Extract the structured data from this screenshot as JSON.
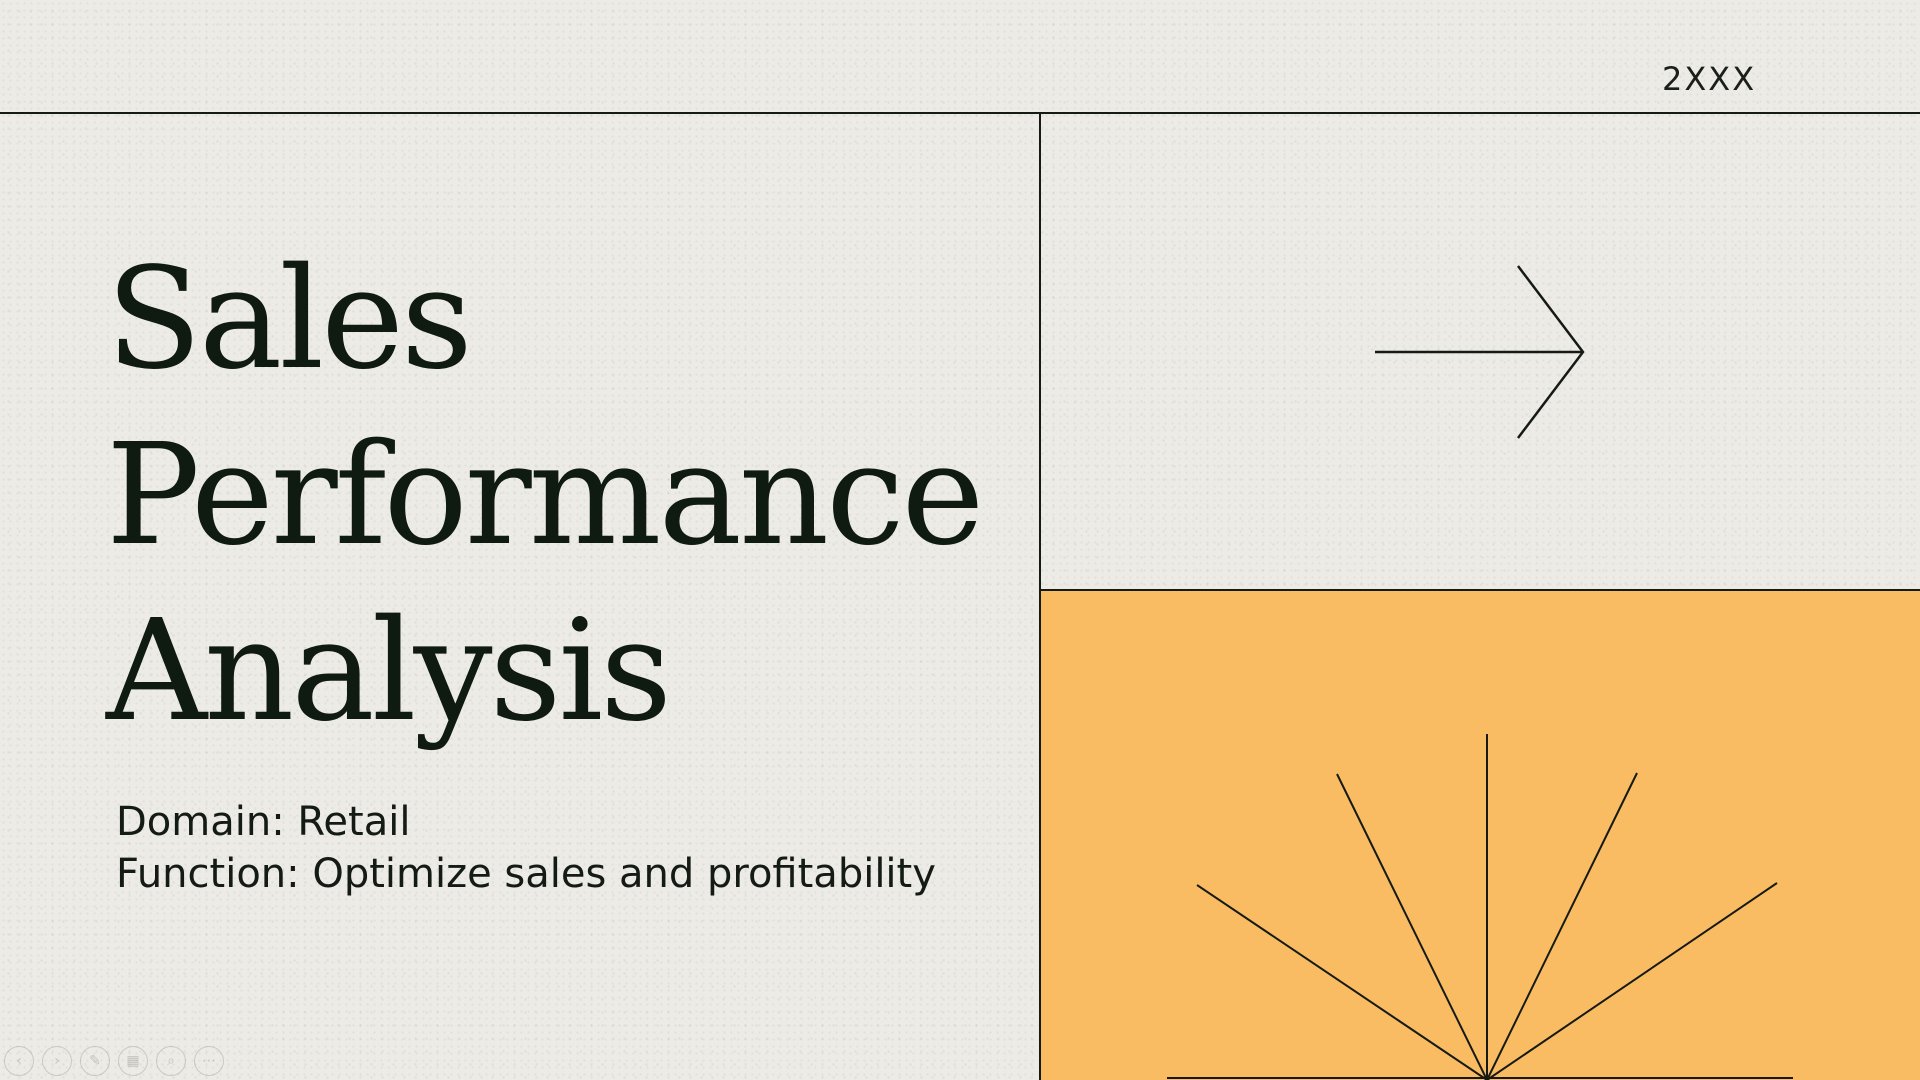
{
  "slide": {
    "year": "2XXX",
    "title_lines": [
      "Sales",
      "Performance",
      "Analysis"
    ],
    "subtitle_lines": [
      "Domain: Retail",
      "Function: Optimize sales and profitability"
    ]
  },
  "decor": {
    "accent_color": "#f9bc63",
    "background_color": "#ecebe5",
    "line_color": "#151a15",
    "arrow_icon": "right-arrow-icon",
    "burst_icon": "sunburst-lines-icon"
  },
  "toolbar": {
    "buttons": [
      {
        "name": "previous-slide-button",
        "glyph": "‹"
      },
      {
        "name": "next-slide-button",
        "glyph": "›"
      },
      {
        "name": "pen-tool-button",
        "glyph": "✎"
      },
      {
        "name": "slides-grid-button",
        "glyph": "▦"
      },
      {
        "name": "zoom-button",
        "glyph": "⌕"
      },
      {
        "name": "more-options-button",
        "glyph": "⋯"
      }
    ]
  }
}
